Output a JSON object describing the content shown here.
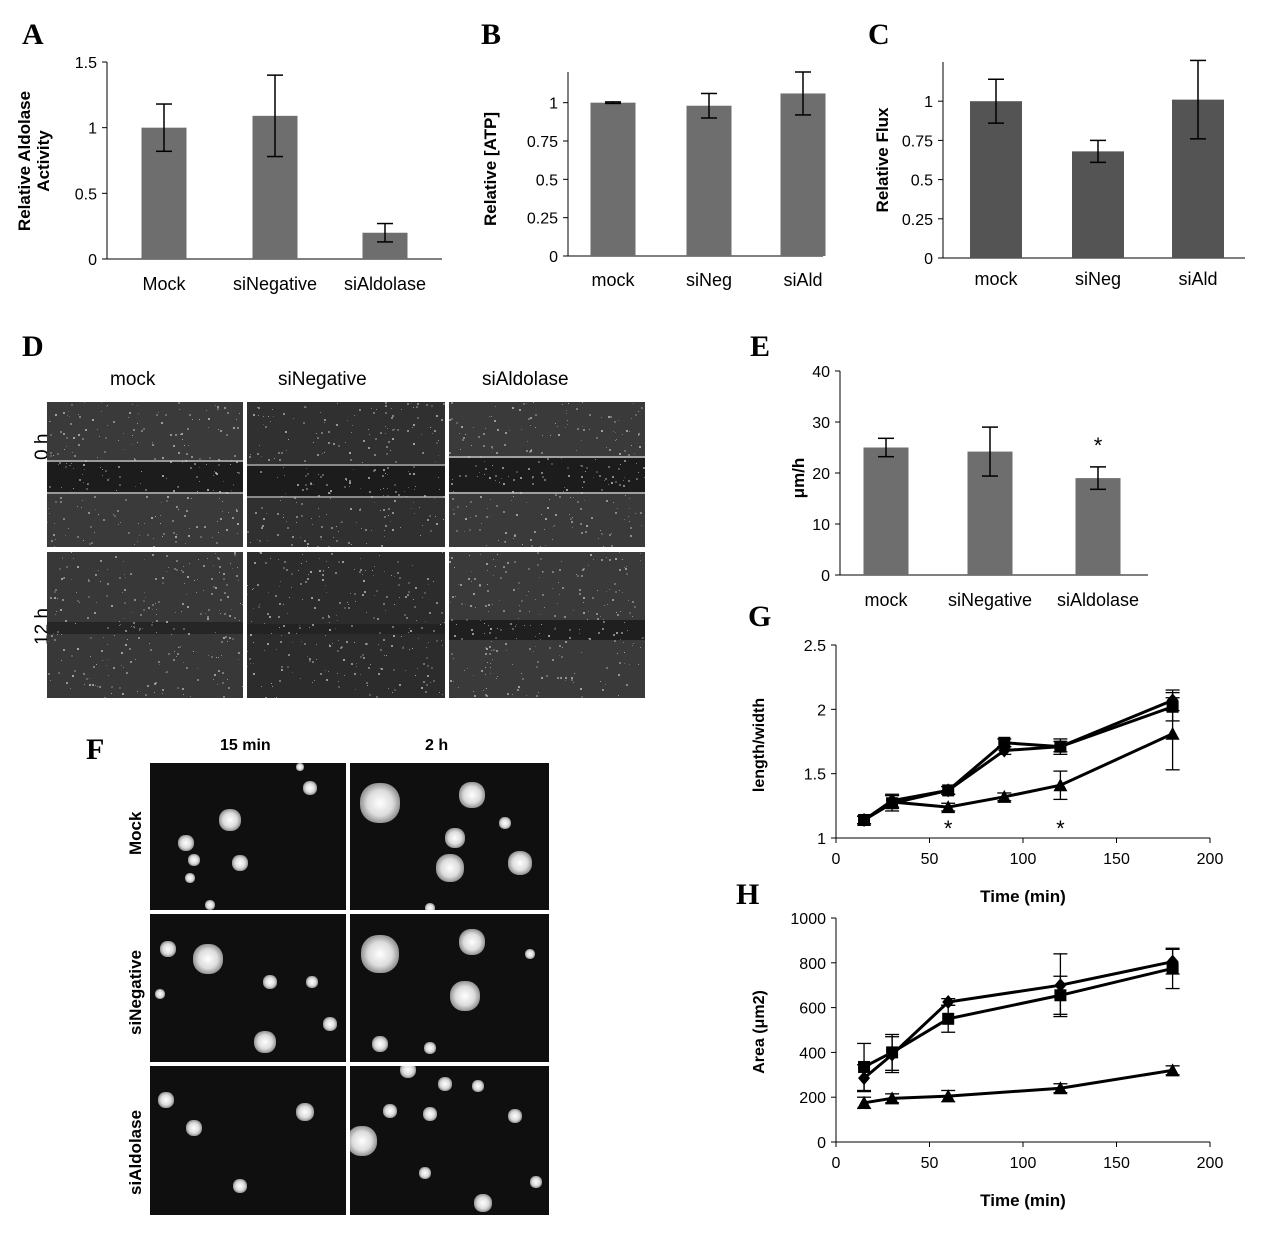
{
  "panels": {
    "A": "A",
    "B": "B",
    "C": "C",
    "D": "D",
    "E": "E",
    "F": "F",
    "G": "G",
    "H": "H"
  },
  "panel_D": {
    "columns": [
      "mock",
      "siNegative",
      "siAldolase"
    ],
    "rows": [
      "0 h",
      "12 h"
    ]
  },
  "panel_F": {
    "columns": [
      "15 min",
      "2 h"
    ],
    "rows": [
      "Mock",
      "siNegative",
      "siAldolase"
    ]
  },
  "colors": {
    "bar": "#6e6e6e",
    "bar_dark": "#545454",
    "line": "#000000",
    "micro_bg": "#111111"
  },
  "chart_data": [
    {
      "id": "A",
      "type": "bar",
      "categories": [
        "Mock",
        "siNegative",
        "siAldolase"
      ],
      "values": [
        1.0,
        1.09,
        0.2
      ],
      "errors": [
        0.18,
        0.31,
        0.07
      ],
      "ylabel": "Relative Aldolase Activity",
      "ylim": [
        0,
        1.5
      ],
      "yticks": [
        0,
        0.5,
        1,
        1.5
      ],
      "ytick_labels": [
        "0",
        "0.5",
        "1",
        "1.5"
      ]
    },
    {
      "id": "B",
      "type": "bar",
      "categories": [
        "mock",
        "siNeg",
        "siAld"
      ],
      "values": [
        1.0,
        0.98,
        1.06
      ],
      "errors": [
        0.005,
        0.08,
        0.14
      ],
      "ylabel": "Relative [ATP]",
      "ylim": [
        0,
        1.2
      ],
      "yticks": [
        0,
        0.25,
        0.5,
        0.75,
        1
      ],
      "ytick_labels": [
        "0",
        "0.25",
        "0.5",
        "0.75",
        "1"
      ]
    },
    {
      "id": "C",
      "type": "bar",
      "categories": [
        "mock",
        "siNeg",
        "siAld"
      ],
      "values": [
        1.0,
        0.68,
        1.01
      ],
      "errors": [
        0.14,
        0.07,
        0.25
      ],
      "ylabel": "Relative Flux",
      "ylim": [
        0,
        1.25
      ],
      "yticks": [
        0,
        0.25,
        0.5,
        0.75,
        1
      ],
      "ytick_labels": [
        "0",
        "0.25",
        "0.5",
        "0.75",
        "1"
      ]
    },
    {
      "id": "E",
      "type": "bar",
      "categories": [
        "mock",
        "siNegative",
        "siAldolase"
      ],
      "values": [
        25,
        24.2,
        19
      ],
      "errors": [
        1.8,
        4.8,
        2.2
      ],
      "ylabel": "μm/h",
      "ylim": [
        0,
        40
      ],
      "yticks": [
        0,
        10,
        20,
        30,
        40
      ],
      "ytick_labels": [
        "0",
        "10",
        "20",
        "30",
        "40"
      ],
      "annotations": [
        {
          "category_index": 2,
          "text": "*"
        }
      ]
    },
    {
      "id": "G",
      "type": "line",
      "xlabel": "Time (min)",
      "ylabel": "length/width",
      "xlim": [
        0,
        200
      ],
      "ylim": [
        1,
        2.5
      ],
      "xticks": [
        0,
        50,
        100,
        150,
        200
      ],
      "yticks": [
        1,
        1.5,
        2,
        2.5
      ],
      "xtick_labels": [
        "0",
        "50",
        "100",
        "150",
        "200"
      ],
      "ytick_labels": [
        "1",
        "1.5",
        "2",
        "2.5"
      ],
      "x": [
        15,
        30,
        60,
        90,
        120,
        180
      ],
      "series": [
        {
          "marker": "diamond",
          "values": [
            1.14,
            1.29,
            1.37,
            1.68,
            1.71,
            2.07
          ],
          "errors": [
            0.03,
            0.05,
            0.03,
            0.03,
            0.04,
            0.08
          ]
        },
        {
          "marker": "square",
          "values": [
            1.14,
            1.27,
            1.37,
            1.74,
            1.71,
            2.02
          ],
          "errors": [
            0.03,
            0.06,
            0.03,
            0.03,
            0.06,
            0.11
          ]
        },
        {
          "marker": "triangle",
          "values": [
            1.14,
            1.28,
            1.24,
            1.32,
            1.41,
            1.81
          ],
          "errors": [
            0.03,
            0.05,
            0.03,
            0.03,
            0.11,
            0.28
          ]
        }
      ],
      "annotations": [
        {
          "x": 60,
          "text": "*"
        },
        {
          "x": 120,
          "text": "*"
        }
      ]
    },
    {
      "id": "H",
      "type": "line",
      "xlabel": "Time (min)",
      "ylabel": "Area (μm2)",
      "xlim": [
        0,
        200
      ],
      "ylim": [
        0,
        1000
      ],
      "xticks": [
        0,
        50,
        100,
        150,
        200
      ],
      "yticks": [
        0,
        200,
        400,
        600,
        800,
        1000
      ],
      "xtick_labels": [
        "0",
        "50",
        "100",
        "150",
        "200"
      ],
      "ytick_labels": [
        "0",
        "200",
        "400",
        "600",
        "800",
        "1000"
      ],
      "x": [
        15,
        30,
        60,
        120,
        180
      ],
      "series": [
        {
          "marker": "diamond",
          "values": [
            285,
            390,
            625,
            700,
            805
          ],
          "errors": [
            60,
            80,
            15,
            140,
            55
          ]
        },
        {
          "marker": "square",
          "values": [
            335,
            400,
            550,
            655,
            775
          ],
          "errors": [
            105,
            80,
            60,
            85,
            90
          ]
        },
        {
          "marker": "triangle",
          "values": [
            175,
            195,
            205,
            240,
            320
          ],
          "errors": [
            25,
            20,
            25,
            20,
            20
          ]
        }
      ]
    }
  ]
}
